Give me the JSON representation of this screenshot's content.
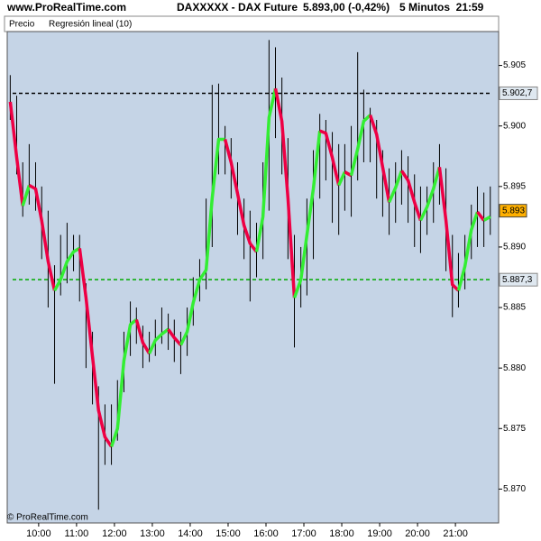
{
  "chart_data": {
    "type": "price",
    "site": "www.ProRealTime.com",
    "title": "DAXXXXX - DAX Future",
    "quote": "5.893,00 (-0,42%)",
    "period": "5 Minutos  21:59",
    "copyright": "© ProRealTime.com",
    "x": [
      9.25,
      9.42,
      9.58,
      9.75,
      9.92,
      10.08,
      10.25,
      10.42,
      10.58,
      10.75,
      10.92,
      11.08,
      11.25,
      11.42,
      11.58,
      11.75,
      11.92,
      12.08,
      12.25,
      12.42,
      12.58,
      12.75,
      12.92,
      13.08,
      13.25,
      13.42,
      13.58,
      13.75,
      13.92,
      14.08,
      14.25,
      14.42,
      14.58,
      14.75,
      14.92,
      15.08,
      15.25,
      15.42,
      15.58,
      15.75,
      15.92,
      16.08,
      16.25,
      16.42,
      16.58,
      16.75,
      16.92,
      17.08,
      17.25,
      17.42,
      17.58,
      17.75,
      17.92,
      18.08,
      18.25,
      18.42,
      18.58,
      18.75,
      18.92,
      19.08,
      19.25,
      19.42,
      19.58,
      19.75,
      19.92,
      20.08,
      20.25,
      20.42,
      20.58,
      20.75,
      20.92,
      21.08,
      21.25,
      21.42,
      21.58,
      21.75,
      21.92
    ],
    "series": [
      {
        "name": "Precio",
        "color": "#000000",
        "high": [
          5904.2,
          5902.5,
          5897,
          5898.5,
          5897,
          5895,
          5893,
          5888.5,
          5891,
          5892,
          5891,
          5891,
          5887,
          5883,
          5878.5,
          5877,
          5877,
          5879,
          5883,
          5885.5,
          5885,
          5883.5,
          5883,
          5884,
          5885,
          5884.5,
          5884,
          5883,
          5885,
          5887.5,
          5889,
          5894,
          5903.4,
          5903.5,
          5900,
          5899,
          5897,
          5894,
          5893,
          5892,
          5897,
          5907.1,
          5906.5,
          5904,
          5899,
          5891,
          5890,
          5894,
          5898,
          5901,
          5900.5,
          5899.5,
          5898.5,
          5898.5,
          5900,
          5906.1,
          5903,
          5901.5,
          5900.5,
          5898,
          5896.5,
          5897,
          5898,
          5897.5,
          5896,
          5895,
          5895,
          5897,
          5898.5,
          5896.5,
          5891,
          5889.5,
          5891,
          5893.5,
          5895,
          5894.5,
          5895
        ],
        "low": [
          5900.5,
          5896,
          5892.5,
          5893.5,
          5893,
          5889,
          5885,
          5878.7,
          5886,
          5887,
          5888,
          5885.5,
          5880,
          5877,
          5868.3,
          5872,
          5872,
          5874,
          5878,
          5881,
          5882,
          5880,
          5880.5,
          5881,
          5882,
          5881.5,
          5880.5,
          5879.5,
          5881,
          5883.5,
          5885.5,
          5886.5,
          5890,
          5896,
          5896,
          5894,
          5891,
          5889,
          5885.5,
          5887.5,
          5889,
          5893,
          5899,
          5896,
          5889,
          5881.7,
          5885,
          5886,
          5889,
          5894,
          5895.5,
          5892,
          5891,
          5893,
          5892.5,
          5895.5,
          5897,
          5897,
          5894,
          5892.5,
          5891,
          5892,
          5893.5,
          5892,
          5890,
          5889.5,
          5891,
          5892,
          5893.5,
          5888,
          5884.2,
          5885,
          5886.5,
          5889,
          5890,
          5890,
          5891
        ]
      },
      {
        "name": "Regresión lineal (10)",
        "color": "#33ee33",
        "up_color": "#33ee33",
        "down_color": "#ee0044",
        "values": [
          5902.0,
          5897.4,
          5893.4,
          5895.1,
          5894.8,
          5892.2,
          5888.8,
          5886.4,
          5887.3,
          5888.8,
          5889.6,
          5889.9,
          5885.8,
          5881.0,
          5876.5,
          5874.3,
          5873.5,
          5875.0,
          5880.6,
          5883.6,
          5884.0,
          5882.1,
          5881.2,
          5882.3,
          5882.8,
          5883.2,
          5882.5,
          5881.9,
          5883.0,
          5885.4,
          5887.3,
          5888.1,
          5894.0,
          5898.9,
          5898.9,
          5897.0,
          5894.4,
          5891.8,
          5890.3,
          5889.6,
          5892.5,
          5900.7,
          5903.1,
          5900.4,
          5894.0,
          5885.8,
          5887.3,
          5891.0,
          5894.8,
          5899.6,
          5899.4,
          5897.4,
          5895.1,
          5896.2,
          5895.9,
          5898.1,
          5900.4,
          5900.9,
          5899.3,
          5896.6,
          5893.7,
          5894.9,
          5896.3,
          5895.5,
          5893.7,
          5892.2,
          5893.3,
          5894.8,
          5896.6,
          5892.2,
          5886.9,
          5886.4,
          5888.4,
          5891.4,
          5892.9,
          5892.2,
          5892.5
        ]
      }
    ],
    "levels": [
      {
        "value": 5902.7,
        "label": "5.902,7",
        "color": "#000000"
      },
      {
        "value": 5887.3,
        "label": "5.887,3",
        "color": "#00aa00"
      }
    ],
    "last": {
      "value": 5893,
      "label": "5.893",
      "color": "#ffb000"
    },
    "xlim": [
      9.17,
      22.14
    ],
    "xticks": [
      {
        "value": 10,
        "label": "10:00"
      },
      {
        "value": 11,
        "label": "11:00"
      },
      {
        "value": 12,
        "label": "12:00"
      },
      {
        "value": 13,
        "label": "13:00"
      },
      {
        "value": 14,
        "label": "14:00"
      },
      {
        "value": 15,
        "label": "15:00"
      },
      {
        "value": 16,
        "label": "16:00"
      },
      {
        "value": 17,
        "label": "17:00"
      },
      {
        "value": 18,
        "label": "18:00"
      },
      {
        "value": 19,
        "label": "19:00"
      },
      {
        "value": 20,
        "label": "20:00"
      },
      {
        "value": 21,
        "label": "21:00"
      }
    ],
    "ylim": [
      5867.2,
      5907.8
    ],
    "yticks": [
      {
        "value": 5870,
        "label": "5.870"
      },
      {
        "value": 5875,
        "label": "5.875"
      },
      {
        "value": 5880,
        "label": "5.880"
      },
      {
        "value": 5885,
        "label": "5.885"
      },
      {
        "value": 5890,
        "label": "5.890"
      },
      {
        "value": 5895,
        "label": "5.895"
      },
      {
        "value": 5900,
        "label": "5.900"
      },
      {
        "value": 5905,
        "label": "5.905"
      }
    ]
  }
}
